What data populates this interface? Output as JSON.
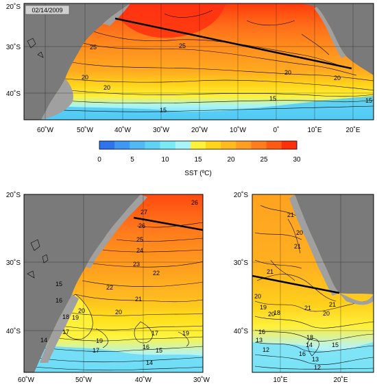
{
  "date_label": "02/14/2009",
  "colorbar": {
    "label": "SST (ºC)",
    "ticks": [
      "0",
      "5",
      "10",
      "15",
      "20",
      "25",
      "30"
    ],
    "min": 0,
    "max": 30,
    "colors": [
      "#2d74ee",
      "#3f98f2",
      "#53b9f5",
      "#5fd2f6",
      "#78ebf6",
      "#a8f5f7",
      "#fff03a",
      "#ffd51a",
      "#ffba1e",
      "#ff9e20",
      "#ff7d1c",
      "#ff5a13",
      "#ff2f0c"
    ]
  },
  "colors": {
    "land": "#7a7a7a",
    "shelf": "#a0a0a0",
    "section_line": "#000000"
  },
  "top_map": {
    "lat_labels": [
      "20˚S",
      "30˚S",
      "40˚S"
    ],
    "lon_labels": [
      "60˚W",
      "50˚W",
      "40˚W",
      "30˚W",
      "20˚W",
      "10˚W",
      "0˚",
      "10˚E",
      "20˚E"
    ],
    "contour_labels": [
      "25",
      "25",
      "20",
      "20",
      "20",
      "15",
      "15",
      "20",
      "15"
    ]
  },
  "bottom_left_map": {
    "lat_labels": [
      "20˚S",
      "30˚S",
      "40˚S"
    ],
    "lon_labels": [
      "60˚W",
      "50˚W",
      "40˚W",
      "30˚W"
    ],
    "contour_labels": [
      "26",
      "27",
      "26",
      "25",
      "24",
      "23",
      "22",
      "22",
      "21",
      "20",
      "20",
      "19",
      "18",
      "17",
      "16",
      "15",
      "14",
      "17",
      "19",
      "19",
      "15",
      "16",
      "17",
      "14"
    ]
  },
  "bottom_right_map": {
    "lat_labels": [
      "20˚S",
      "30˚S",
      "40˚S"
    ],
    "lon_labels": [
      "10˚E",
      "20˚E"
    ],
    "contour_labels": [
      "21",
      "20",
      "21",
      "21",
      "20",
      "19",
      "18",
      "20",
      "21",
      "21",
      "20",
      "16",
      "15",
      "13",
      "12",
      "14",
      "13",
      "12",
      "18",
      "16"
    ]
  }
}
